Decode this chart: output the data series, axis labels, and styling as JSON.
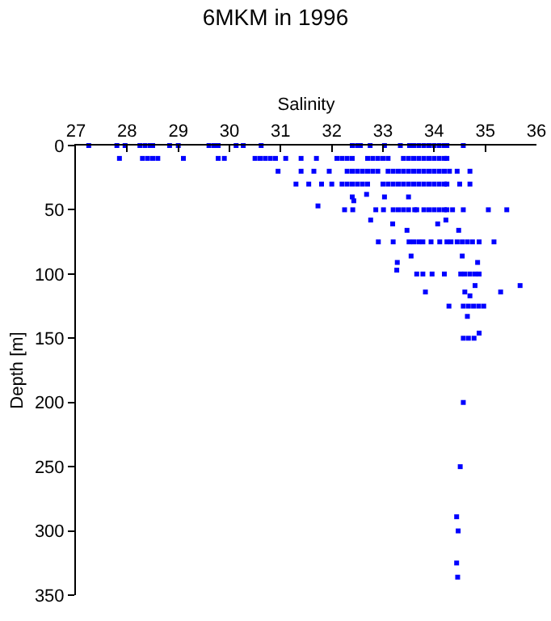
{
  "chart_data": {
    "type": "scatter",
    "title": "6MKM in 1996",
    "xlabel": "Salinity",
    "ylabel": "Depth [m]",
    "xlim": [
      27,
      36
    ],
    "xticks": [
      27,
      28,
      29,
      30,
      31,
      32,
      33,
      34,
      35,
      36
    ],
    "ylim": [
      350,
      0
    ],
    "yticks": [
      0,
      50,
      100,
      150,
      200,
      250,
      300,
      350
    ],
    "grid": false,
    "marker": "square",
    "series": [
      {
        "color": "#0000ff",
        "x": [
          27.25,
          27.8,
          27.96,
          28.25,
          28.35,
          28.45,
          28.5,
          28.83,
          29.0,
          29.6,
          29.7,
          29.78,
          30.13,
          30.27,
          30.62,
          32.4,
          32.5,
          32.56,
          32.75,
          33.03,
          33.34,
          33.52,
          33.6,
          33.7,
          33.8,
          33.9,
          34.0,
          34.1,
          34.2,
          34.25,
          34.57,
          27.85,
          28.3,
          28.4,
          28.5,
          28.6,
          29.1,
          29.78,
          29.9,
          30.5,
          30.6,
          30.7,
          30.8,
          30.9,
          31.1,
          31.4,
          31.7,
          32.1,
          32.2,
          32.3,
          32.4,
          32.7,
          32.8,
          32.9,
          33.0,
          33.1,
          33.4,
          33.5,
          33.6,
          33.7,
          33.8,
          33.9,
          34.0,
          34.1,
          34.2,
          34.25,
          30.95,
          31.4,
          31.65,
          31.95,
          32.3,
          32.4,
          32.5,
          32.6,
          32.7,
          32.8,
          32.9,
          33.1,
          33.2,
          33.3,
          33.4,
          33.5,
          33.6,
          33.7,
          33.8,
          33.9,
          34.0,
          34.1,
          34.2,
          34.3,
          34.45,
          34.7,
          31.3,
          31.55,
          31.8,
          32.0,
          32.2,
          32.3,
          32.4,
          32.5,
          32.6,
          32.7,
          33.0,
          33.1,
          33.2,
          33.3,
          33.4,
          33.5,
          33.6,
          33.7,
          33.8,
          33.9,
          34.0,
          34.1,
          34.2,
          34.25,
          34.5,
          34.7,
          32.68,
          33.03,
          33.5,
          32.43,
          31.73,
          32.4,
          32.25,
          32.41,
          32.86,
          33.01,
          33.2,
          33.3,
          33.4,
          33.5,
          33.62,
          33.66,
          33.8,
          33.9,
          34.0,
          34.1,
          34.2,
          34.25,
          34.36,
          34.57,
          35.06,
          35.42,
          32.76,
          33.19,
          34.07,
          34.23,
          33.47,
          34.48,
          32.91,
          33.2,
          33.51,
          33.6,
          33.7,
          33.78,
          33.94,
          34.11,
          34.25,
          34.33,
          34.45,
          34.55,
          34.65,
          34.75,
          34.88,
          35.17,
          33.55,
          34.55,
          33.28,
          34.85,
          33.27,
          33.66,
          33.78,
          33.96,
          34.2,
          34.52,
          34.6,
          34.7,
          34.8,
          34.88,
          34.8,
          35.68,
          33.83,
          34.6,
          35.3,
          34.7,
          34.29,
          34.57,
          34.67,
          34.77,
          34.87,
          34.97,
          34.65,
          34.88,
          34.57,
          34.67,
          34.78,
          34.57,
          34.51,
          34.44,
          34.47,
          34.44,
          34.46
        ],
        "values": [
          0,
          0,
          0,
          0,
          0,
          0,
          0,
          0,
          0,
          0,
          0,
          0,
          0,
          0,
          0,
          0,
          0,
          0,
          0,
          0,
          0,
          0,
          0,
          0,
          0,
          0,
          0,
          0,
          0,
          0,
          0,
          10,
          10,
          10,
          10,
          10,
          10,
          10,
          10,
          10,
          10,
          10,
          10,
          10,
          10,
          10,
          10,
          10,
          10,
          10,
          10,
          10,
          10,
          10,
          10,
          10,
          10,
          10,
          10,
          10,
          10,
          10,
          10,
          10,
          10,
          10,
          20,
          20,
          20,
          20,
          20,
          20,
          20,
          20,
          20,
          20,
          20,
          20,
          20,
          20,
          20,
          20,
          20,
          20,
          20,
          20,
          20,
          20,
          20,
          20,
          20,
          20,
          30,
          30,
          30,
          30,
          30,
          30,
          30,
          30,
          30,
          30,
          30,
          30,
          30,
          30,
          30,
          30,
          30,
          30,
          30,
          30,
          30,
          30,
          30,
          30,
          30,
          30,
          38,
          40,
          40,
          43,
          47,
          40,
          50,
          50,
          50,
          50,
          50,
          50,
          50,
          50,
          50,
          50,
          50,
          50,
          50,
          50,
          50,
          50,
          50,
          50,
          50,
          50,
          58,
          61,
          61,
          58,
          66,
          66,
          75,
          75,
          75,
          75,
          75,
          75,
          75,
          75,
          75,
          75,
          75,
          75,
          75,
          75,
          75,
          75,
          86,
          86,
          91,
          91,
          97,
          100,
          100,
          100,
          100,
          100,
          100,
          100,
          100,
          100,
          109,
          109,
          114,
          114,
          114,
          117,
          125,
          125,
          125,
          125,
          125,
          125,
          133,
          146,
          150,
          150,
          150,
          200,
          250,
          289,
          300,
          325,
          336
        ]
      }
    ]
  }
}
